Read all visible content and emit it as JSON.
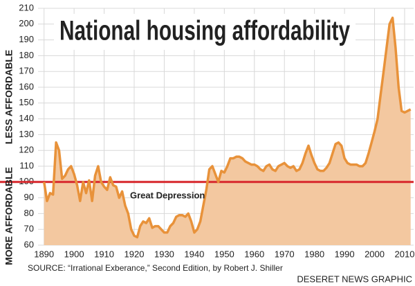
{
  "chart_data": {
    "type": "area",
    "title": "National housing affordability",
    "y_annotations": [
      "LESS AFFORDABLE",
      "MORE AFFORDABLE"
    ],
    "annotation": "Great Depression",
    "source": "SOURCE: “Irrational Exberance,” Second Edition, by Robert J. Shiller",
    "credit": "DESERET NEWS GRAPHIC",
    "xlim": [
      1888,
      2013
    ],
    "ylim": [
      60,
      210
    ],
    "xticks": [
      1890,
      1900,
      1910,
      1920,
      1930,
      1940,
      1950,
      1960,
      1970,
      1980,
      1990,
      2000,
      2010
    ],
    "yticks": [
      60,
      70,
      80,
      90,
      100,
      110,
      120,
      130,
      140,
      150,
      160,
      170,
      180,
      190,
      200,
      210
    ],
    "grid": true,
    "reference_line": {
      "value": 100,
      "color": "#d7262b"
    },
    "x": [
      1890,
      1891,
      1892,
      1893,
      1894,
      1895,
      1896,
      1897,
      1898,
      1899,
      1900,
      1901,
      1902,
      1903,
      1904,
      1905,
      1906,
      1907,
      1908,
      1909,
      1910,
      1911,
      1912,
      1913,
      1914,
      1915,
      1916,
      1917,
      1918,
      1919,
      1920,
      1921,
      1922,
      1923,
      1924,
      1925,
      1926,
      1927,
      1928,
      1929,
      1930,
      1931,
      1932,
      1933,
      1934,
      1935,
      1936,
      1937,
      1938,
      1939,
      1940,
      1941,
      1942,
      1943,
      1944,
      1945,
      1946,
      1947,
      1948,
      1949,
      1950,
      1951,
      1952,
      1953,
      1954,
      1955,
      1956,
      1957,
      1958,
      1959,
      1960,
      1961,
      1962,
      1963,
      1964,
      1965,
      1966,
      1967,
      1968,
      1969,
      1970,
      1971,
      1972,
      1973,
      1974,
      1975,
      1976,
      1977,
      1978,
      1979,
      1980,
      1981,
      1982,
      1983,
      1984,
      1985,
      1986,
      1987,
      1988,
      1989,
      1990,
      1991,
      1992,
      1993,
      1994,
      1995,
      1996,
      1997,
      1998,
      1999,
      2000,
      2001,
      2002,
      2003,
      2004,
      2005,
      2006,
      2007,
      2008,
      2009,
      2010,
      2011,
      2012
    ],
    "series": [
      {
        "color": "#e8923a",
        "fill": "#f3c8a0",
        "values": [
          100,
          88,
          93,
          92,
          125,
          120,
          102,
          104,
          108,
          110,
          105,
          98,
          88,
          100,
          93,
          101,
          88,
          104,
          110,
          100,
          97,
          95,
          103,
          98,
          97,
          90,
          94,
          85,
          80,
          70,
          66,
          65,
          72,
          75,
          74,
          77,
          71,
          72,
          72,
          70,
          68,
          68,
          72,
          74,
          78,
          79,
          79,
          78,
          80,
          75,
          68,
          70,
          75,
          85,
          95,
          108,
          110,
          105,
          100,
          107,
          106,
          110,
          115,
          115,
          116,
          116,
          115,
          113,
          112,
          111,
          111,
          110,
          108,
          107,
          110,
          111,
          108,
          107,
          110,
          111,
          112,
          110,
          109,
          110,
          107,
          108,
          112,
          118,
          123,
          117,
          112,
          108,
          107,
          107,
          109,
          112,
          118,
          124,
          125,
          123,
          115,
          112,
          111,
          111,
          111,
          110,
          110,
          112,
          118,
          125,
          132,
          140,
          155,
          170,
          185,
          200,
          204,
          185,
          160,
          145,
          144,
          145,
          146
        ]
      }
    ]
  }
}
